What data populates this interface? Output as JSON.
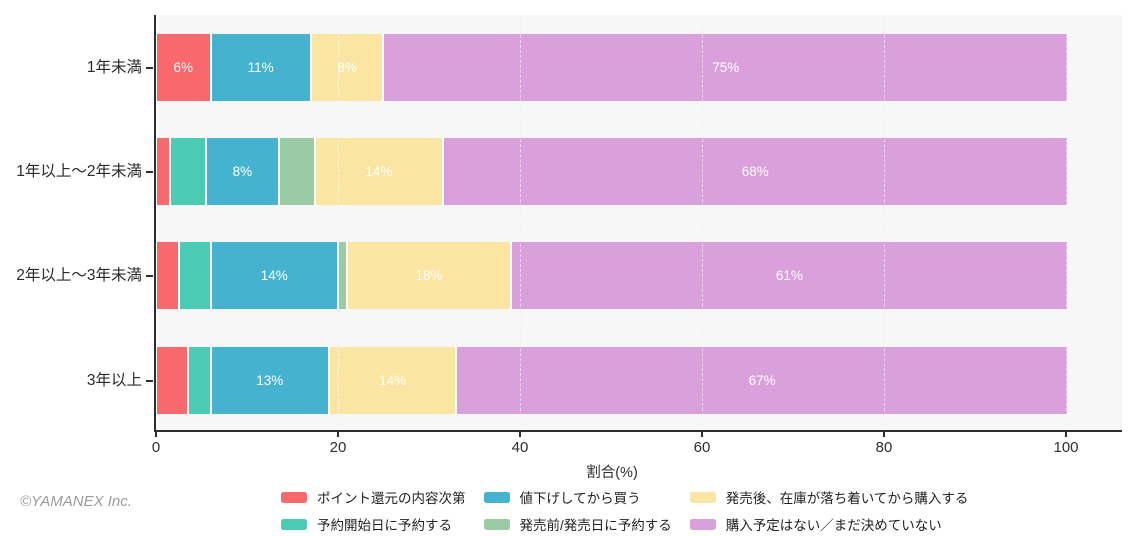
{
  "palette": {
    "point": "#F8696E",
    "preorder": "#4CCBB4",
    "discount": "#45B3D0",
    "prerelease": "#9BCBA4",
    "after": "#FBE5A2",
    "none": "#D9A0DB"
  },
  "axis": {
    "x_title": "割合(%)",
    "x_ticks": [
      "0",
      "20",
      "40",
      "60",
      "80",
      "100"
    ]
  },
  "rows": [
    {
      "category": "1年未満",
      "segments": [
        {
          "key": "point",
          "value": 6,
          "label": "6%"
        },
        {
          "key": "discount",
          "value": 11,
          "label": "11%"
        },
        {
          "key": "after",
          "value": 8,
          "label": "8%"
        },
        {
          "key": "none",
          "value": 75,
          "label": "75%"
        }
      ]
    },
    {
      "category": "1年以上〜2年未満",
      "segments": [
        {
          "key": "point",
          "value": 1.5,
          "label": ""
        },
        {
          "key": "preorder",
          "value": 4,
          "label": ""
        },
        {
          "key": "discount",
          "value": 8,
          "label": "8%"
        },
        {
          "key": "prerelease",
          "value": 4,
          "label": ""
        },
        {
          "key": "after",
          "value": 14,
          "label": "14%"
        },
        {
          "key": "none",
          "value": 68.5,
          "label": "68%"
        }
      ]
    },
    {
      "category": "2年以上〜3年未満",
      "segments": [
        {
          "key": "point",
          "value": 2.5,
          "label": ""
        },
        {
          "key": "preorder",
          "value": 3.5,
          "label": ""
        },
        {
          "key": "discount",
          "value": 14,
          "label": "14%"
        },
        {
          "key": "prerelease",
          "value": 1,
          "label": ""
        },
        {
          "key": "after",
          "value": 18,
          "label": "18%"
        },
        {
          "key": "none",
          "value": 61,
          "label": "61%"
        }
      ]
    },
    {
      "category": "3年以上",
      "segments": [
        {
          "key": "point",
          "value": 3.5,
          "label": ""
        },
        {
          "key": "preorder",
          "value": 2.5,
          "label": ""
        },
        {
          "key": "discount",
          "value": 13,
          "label": "13%"
        },
        {
          "key": "after",
          "value": 14,
          "label": "14%"
        },
        {
          "key": "none",
          "value": 67,
          "label": "67%"
        }
      ]
    }
  ],
  "legend": [
    {
      "key": "point",
      "label": "ポイント還元の内容次第"
    },
    {
      "key": "preorder",
      "label": "予約開始日に予約する"
    },
    {
      "key": "discount",
      "label": "値下げしてから買う"
    },
    {
      "key": "prerelease",
      "label": "発売前/発売日に予約する"
    },
    {
      "key": "after",
      "label": "発売後、在庫が落ち着いてから購入する"
    },
    {
      "key": "none",
      "label": "購入予定はない／まだ決めていない"
    }
  ],
  "footer": {
    "copyright": "©YAMANEX Inc."
  },
  "chart_data": {
    "type": "bar",
    "orientation": "horizontal",
    "stacked": true,
    "title": "",
    "xlabel": "割合(%)",
    "ylabel": "",
    "xlim": [
      0,
      100
    ],
    "x_ticks": [
      0,
      20,
      40,
      60,
      80,
      100
    ],
    "grid": "vertical dashed at each x tick",
    "legend_position": "bottom",
    "categories": [
      "1年未満",
      "1年以上〜2年未満",
      "2年以上〜3年未満",
      "3年以上"
    ],
    "series": [
      {
        "name": "ポイント還元の内容次第",
        "color": "#F8696E",
        "values": [
          6,
          1.5,
          2.5,
          3.5
        ]
      },
      {
        "name": "予約開始日に予約する",
        "color": "#4CCBB4",
        "values": [
          0,
          4,
          3.5,
          2.5
        ]
      },
      {
        "name": "値下げしてから買う",
        "color": "#45B3D0",
        "values": [
          11,
          8,
          14,
          13
        ]
      },
      {
        "name": "発売前/発売日に予約する",
        "color": "#9BCBA4",
        "values": [
          0,
          4,
          1,
          0
        ]
      },
      {
        "name": "発売後、在庫が落ち着いてから購入する",
        "color": "#FBE5A2",
        "values": [
          8,
          14,
          18,
          14
        ]
      },
      {
        "name": "購入予定はない／まだ決めていない",
        "color": "#D9A0DB",
        "values": [
          75,
          68.5,
          61,
          67
        ]
      }
    ],
    "data_labels": "white percentage text shown on segments ≥ 6%",
    "annotations": [
      "©YAMANEX Inc."
    ]
  }
}
